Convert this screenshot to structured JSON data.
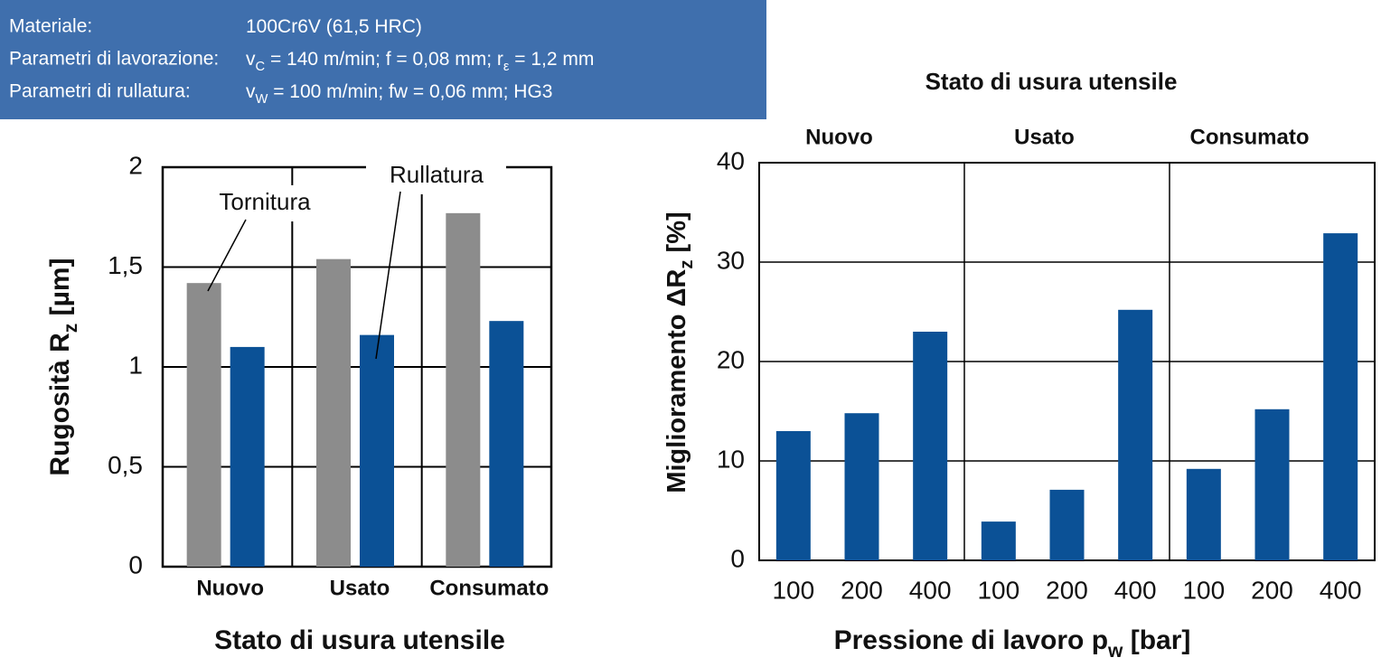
{
  "info_box": {
    "rows": [
      {
        "label": "Materiale:",
        "parts": [
          {
            "text": "100Cr6V (61,5 HRC)"
          }
        ]
      },
      {
        "label": "Parametri di lavorazione:",
        "parts": [
          {
            "text": "v"
          },
          {
            "text": "C",
            "sub": true
          },
          {
            "text": " = 140 m/min; f = 0,08 mm; r"
          },
          {
            "text": "ε",
            "sub": true
          },
          {
            "text": " = 1,2 mm"
          }
        ]
      },
      {
        "label": "Parametri di rullatura:",
        "parts": [
          {
            "text": "v"
          },
          {
            "text": "W",
            "sub": true
          },
          {
            "text": " = 100 m/min; fw = 0,06 mm; HG3"
          }
        ]
      }
    ],
    "color": "#3f6fad"
  },
  "chart_data": [
    {
      "type": "bar",
      "categories": [
        "Nuovo",
        "Usato",
        "Consumato"
      ],
      "series": [
        {
          "name": "Tornitura",
          "color": "#8c8c8c",
          "values": [
            1.42,
            1.54,
            1.77
          ]
        },
        {
          "name": "Rullatura",
          "color": "#0b5196",
          "values": [
            1.1,
            1.16,
            1.23
          ]
        }
      ],
      "ylim": [
        0,
        2
      ],
      "yticks": [
        0,
        {
          "value": 0.5,
          "label": "0,5"
        },
        1,
        {
          "value": 1.5,
          "label": "1,5"
        },
        2
      ],
      "ylabel": [
        {
          "text": "Rugosità R"
        },
        {
          "text": "z",
          "sub": true
        },
        {
          "text": " [µm]"
        }
      ],
      "xlabel": [
        {
          "text": "Stato di usura utensile"
        }
      ],
      "grid": true
    },
    {
      "type": "bar",
      "title": "Stato di usura utensile",
      "groups": [
        "Nuovo",
        "Usato",
        "Consumato"
      ],
      "categories": [
        "100",
        "200",
        "400",
        "100",
        "200",
        "400",
        "100",
        "200",
        "400"
      ],
      "color": "#0b5196",
      "values": [
        13,
        14.8,
        23,
        3.9,
        7.1,
        25.2,
        9.2,
        15.2,
        32.9
      ],
      "ylim": [
        0,
        40
      ],
      "yticks": [
        0,
        10,
        20,
        30,
        40
      ],
      "ylabel": [
        {
          "text": "Miglioramento ΔR"
        },
        {
          "text": "z",
          "sub": true
        },
        {
          "text": " [%]"
        }
      ],
      "xlabel": [
        {
          "text": "Pressione di lavoro p"
        },
        {
          "text": "w",
          "sub": true
        },
        {
          "text": " [bar]"
        }
      ],
      "grid": true
    }
  ]
}
